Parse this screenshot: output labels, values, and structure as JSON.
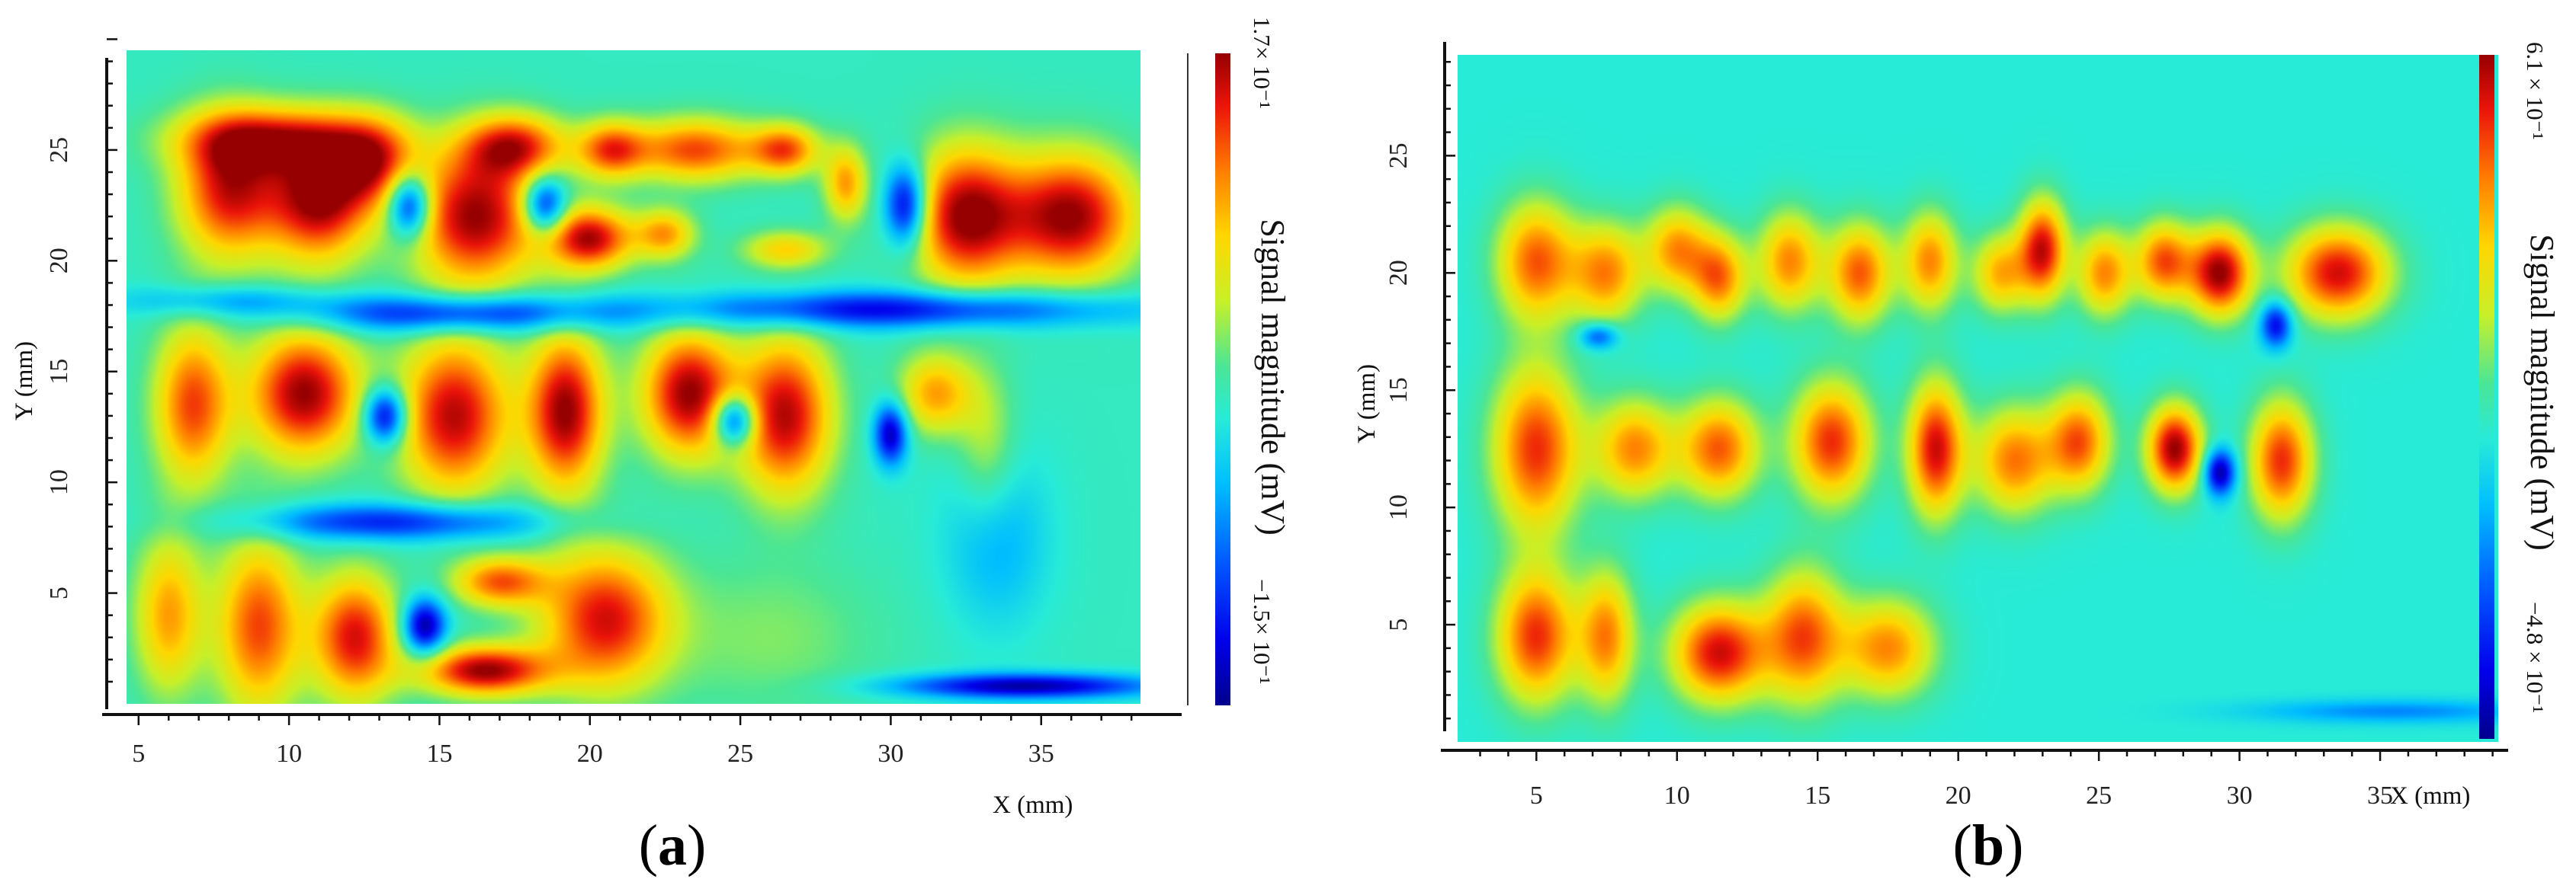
{
  "chart_data": [
    {
      "type": "heatmap",
      "panel_label": "a",
      "xlabel": "X (mm)",
      "ylabel": "Y (mm)",
      "xlim": [
        4.6,
        38.3
      ],
      "ylim": [
        0,
        29.5
      ],
      "x_ticks": [
        "5",
        "10",
        "15",
        "20",
        "25",
        "30",
        "35"
      ],
      "x_tick_values": [
        5,
        10,
        15,
        20,
        25,
        30,
        35
      ],
      "y_ticks": [
        "5",
        "10",
        "15",
        "20",
        "25"
      ],
      "y_tick_values": [
        5,
        10,
        15,
        20,
        25
      ],
      "colorbar": {
        "title": "Signal magnitude (mV)",
        "max_label": "1.7× 10⁻¹",
        "min_label": "−1.5× 10⁻¹",
        "max_value": 0.17,
        "min_value": -0.15
      },
      "background_value": 0.0,
      "features": [
        {
          "x": 8.0,
          "y": 23.2,
          "value": 0.15,
          "sx": 1.2,
          "sy": 2.2
        },
        {
          "x": 11.0,
          "y": 22.8,
          "value": 0.17,
          "sx": 1.2,
          "sy": 2.0
        },
        {
          "x": 9.5,
          "y": 25.5,
          "value": 0.12,
          "sx": 2.2,
          "sy": 1.0
        },
        {
          "x": 12.8,
          "y": 24.5,
          "value": 0.12,
          "sx": 1.0,
          "sy": 1.4
        },
        {
          "x": 14.0,
          "y": 22.5,
          "value": -0.15,
          "sx": 0.5,
          "sy": 1.0
        },
        {
          "x": 16.2,
          "y": 22.0,
          "value": 0.17,
          "sx": 1.5,
          "sy": 2.2
        },
        {
          "x": 17.5,
          "y": 25.2,
          "value": 0.13,
          "sx": 1.2,
          "sy": 1.0
        },
        {
          "x": 18.5,
          "y": 22.5,
          "value": -0.14,
          "sx": 0.5,
          "sy": 0.9
        },
        {
          "x": 20.0,
          "y": 21.0,
          "value": 0.16,
          "sx": 1.0,
          "sy": 1.0
        },
        {
          "x": 20.7,
          "y": 25.0,
          "value": 0.12,
          "sx": 0.8,
          "sy": 0.9
        },
        {
          "x": 23.5,
          "y": 25.0,
          "value": 0.13,
          "sx": 1.5,
          "sy": 1.0
        },
        {
          "x": 22.5,
          "y": 21.2,
          "value": 0.1,
          "sx": 0.7,
          "sy": 0.8
        },
        {
          "x": 26.5,
          "y": 25.0,
          "value": 0.12,
          "sx": 0.8,
          "sy": 0.8
        },
        {
          "x": 26.5,
          "y": 20.5,
          "value": 0.08,
          "sx": 1.0,
          "sy": 0.6
        },
        {
          "x": 28.5,
          "y": 23.5,
          "value": 0.1,
          "sx": 0.5,
          "sy": 1.2
        },
        {
          "x": 30.5,
          "y": 22.5,
          "value": -0.15,
          "sx": 0.5,
          "sy": 1.3
        },
        {
          "x": 32.5,
          "y": 22.0,
          "value": 0.17,
          "sx": 1.3,
          "sy": 2.2
        },
        {
          "x": 36.0,
          "y": 22.0,
          "value": 0.17,
          "sx": 1.5,
          "sy": 2.0
        },
        {
          "x": 6.8,
          "y": 13.5,
          "value": 0.13,
          "sx": 0.9,
          "sy": 2.5
        },
        {
          "x": 10.5,
          "y": 14.0,
          "value": 0.17,
          "sx": 1.3,
          "sy": 2.0
        },
        {
          "x": 13.2,
          "y": 13.0,
          "value": -0.15,
          "sx": 0.5,
          "sy": 0.9
        },
        {
          "x": 15.5,
          "y": 13.0,
          "value": 0.16,
          "sx": 1.3,
          "sy": 2.5
        },
        {
          "x": 19.2,
          "y": 13.2,
          "value": 0.17,
          "sx": 0.9,
          "sy": 2.5
        },
        {
          "x": 23.3,
          "y": 14.0,
          "value": 0.17,
          "sx": 1.1,
          "sy": 2.0
        },
        {
          "x": 24.8,
          "y": 12.8,
          "value": -0.15,
          "sx": 0.5,
          "sy": 0.8
        },
        {
          "x": 26.5,
          "y": 13.0,
          "value": 0.16,
          "sx": 1.1,
          "sy": 2.5
        },
        {
          "x": 30.0,
          "y": 12.2,
          "value": -0.14,
          "sx": 0.4,
          "sy": 1.0
        },
        {
          "x": 31.5,
          "y": 14.0,
          "value": 0.1,
          "sx": 0.9,
          "sy": 1.3
        },
        {
          "x": 33.2,
          "y": 11.5,
          "value": 0.05,
          "sx": 0.7,
          "sy": 2.5
        },
        {
          "x": 6.0,
          "y": 4.0,
          "value": 0.1,
          "sx": 0.8,
          "sy": 2.5
        },
        {
          "x": 9.0,
          "y": 3.5,
          "value": 0.13,
          "sx": 1.0,
          "sy": 2.8
        },
        {
          "x": 12.2,
          "y": 3.0,
          "value": 0.15,
          "sx": 1.0,
          "sy": 2.0
        },
        {
          "x": 14.5,
          "y": 3.5,
          "value": -0.15,
          "sx": 0.5,
          "sy": 0.9
        },
        {
          "x": 16.5,
          "y": 1.5,
          "value": 0.17,
          "sx": 1.5,
          "sy": 0.8
        },
        {
          "x": 17.0,
          "y": 5.5,
          "value": 0.12,
          "sx": 1.1,
          "sy": 0.8
        },
        {
          "x": 20.5,
          "y": 3.8,
          "value": 0.15,
          "sx": 1.5,
          "sy": 2.2
        },
        {
          "x": 26.0,
          "y": 3.0,
          "value": 0.03,
          "sx": 2.5,
          "sy": 2.5
        },
        {
          "x": 15.5,
          "y": 17.6,
          "value": -0.12,
          "sx": 3.5,
          "sy": 0.6
        },
        {
          "x": 8.0,
          "y": 18.2,
          "value": -0.06,
          "sx": 2.5,
          "sy": 0.5
        },
        {
          "x": 30.0,
          "y": 17.8,
          "value": -0.12,
          "sx": 5.5,
          "sy": 0.6
        },
        {
          "x": 13.5,
          "y": 8.2,
          "value": -0.11,
          "sx": 3.5,
          "sy": 0.6
        },
        {
          "x": 34.5,
          "y": 0.8,
          "value": -0.14,
          "sx": 3.0,
          "sy": 0.4
        },
        {
          "x": 33.5,
          "y": 7.5,
          "value": -0.05,
          "sx": 1.2,
          "sy": 2.8
        }
      ]
    },
    {
      "type": "heatmap",
      "panel_label": "b",
      "xlabel": "X (mm)",
      "ylabel": "Y (mm)",
      "xlim": [
        2.2,
        39.2
      ],
      "ylim": [
        0,
        29.3
      ],
      "x_ticks": [
        "5",
        "10",
        "15",
        "20",
        "25",
        "30",
        "35"
      ],
      "x_tick_values": [
        5,
        10,
        15,
        20,
        25,
        30,
        35
      ],
      "y_ticks": [
        "5",
        "10",
        "15",
        "20",
        "25"
      ],
      "y_tick_values": [
        5,
        10,
        15,
        20,
        25
      ],
      "colorbar": {
        "title": "Signal magnitude (mV)",
        "max_label": "6.1 × 10⁻¹",
        "min_label": "−4.8 × 10⁻¹",
        "max_value": 0.61,
        "min_value": -0.48
      },
      "background_value": 0.0,
      "features": [
        {
          "x": 5.0,
          "y": 20.5,
          "value": 0.45,
          "sx": 1.0,
          "sy": 1.8
        },
        {
          "x": 7.5,
          "y": 20.0,
          "value": 0.4,
          "sx": 0.9,
          "sy": 1.5
        },
        {
          "x": 10.0,
          "y": 21.0,
          "value": 0.38,
          "sx": 0.8,
          "sy": 1.3
        },
        {
          "x": 11.5,
          "y": 19.8,
          "value": 0.42,
          "sx": 0.7,
          "sy": 1.3
        },
        {
          "x": 14.0,
          "y": 20.5,
          "value": 0.4,
          "sx": 0.8,
          "sy": 1.5
        },
        {
          "x": 16.5,
          "y": 20.0,
          "value": 0.45,
          "sx": 0.8,
          "sy": 1.5
        },
        {
          "x": 19.0,
          "y": 20.5,
          "value": 0.4,
          "sx": 0.7,
          "sy": 1.5
        },
        {
          "x": 21.5,
          "y": 20.0,
          "value": 0.35,
          "sx": 0.7,
          "sy": 1.2
        },
        {
          "x": 23.0,
          "y": 21.0,
          "value": 0.55,
          "sx": 0.6,
          "sy": 1.5
        },
        {
          "x": 25.2,
          "y": 20.0,
          "value": 0.4,
          "sx": 0.7,
          "sy": 1.3
        },
        {
          "x": 27.3,
          "y": 20.5,
          "value": 0.45,
          "sx": 0.7,
          "sy": 1.2
        },
        {
          "x": 29.3,
          "y": 20.0,
          "value": 0.61,
          "sx": 0.8,
          "sy": 1.3
        },
        {
          "x": 33.5,
          "y": 20.0,
          "value": 0.55,
          "sx": 1.3,
          "sy": 1.4
        },
        {
          "x": 31.3,
          "y": 17.8,
          "value": -0.4,
          "sx": 0.4,
          "sy": 0.7
        },
        {
          "x": 7.2,
          "y": 17.3,
          "value": -0.3,
          "sx": 0.5,
          "sy": 0.4
        },
        {
          "x": 5.0,
          "y": 12.5,
          "value": 0.5,
          "sx": 1.1,
          "sy": 2.5
        },
        {
          "x": 8.5,
          "y": 12.5,
          "value": 0.4,
          "sx": 1.0,
          "sy": 1.5
        },
        {
          "x": 11.5,
          "y": 12.5,
          "value": 0.45,
          "sx": 1.0,
          "sy": 1.5
        },
        {
          "x": 15.5,
          "y": 12.8,
          "value": 0.5,
          "sx": 1.0,
          "sy": 1.8
        },
        {
          "x": 19.2,
          "y": 12.5,
          "value": 0.55,
          "sx": 0.7,
          "sy": 2.0
        },
        {
          "x": 22.0,
          "y": 12.0,
          "value": 0.42,
          "sx": 1.0,
          "sy": 1.6
        },
        {
          "x": 24.3,
          "y": 12.8,
          "value": 0.45,
          "sx": 0.8,
          "sy": 1.5
        },
        {
          "x": 27.7,
          "y": 12.5,
          "value": 0.61,
          "sx": 0.7,
          "sy": 1.3
        },
        {
          "x": 29.3,
          "y": 11.5,
          "value": -0.48,
          "sx": 0.4,
          "sy": 0.7
        },
        {
          "x": 31.5,
          "y": 12.0,
          "value": 0.5,
          "sx": 0.8,
          "sy": 1.8
        },
        {
          "x": 5.0,
          "y": 4.5,
          "value": 0.5,
          "sx": 1.0,
          "sy": 2.0
        },
        {
          "x": 7.5,
          "y": 4.5,
          "value": 0.4,
          "sx": 0.7,
          "sy": 2.0
        },
        {
          "x": 11.5,
          "y": 3.8,
          "value": 0.55,
          "sx": 1.2,
          "sy": 1.5
        },
        {
          "x": 14.5,
          "y": 4.5,
          "value": 0.45,
          "sx": 1.0,
          "sy": 2.0
        },
        {
          "x": 17.5,
          "y": 4.0,
          "value": 0.4,
          "sx": 1.2,
          "sy": 1.5
        },
        {
          "x": 35.5,
          "y": 1.3,
          "value": -0.18,
          "sx": 3.5,
          "sy": 0.35
        }
      ]
    }
  ],
  "panels": [
    {
      "label": "a"
    },
    {
      "label": "b"
    }
  ]
}
